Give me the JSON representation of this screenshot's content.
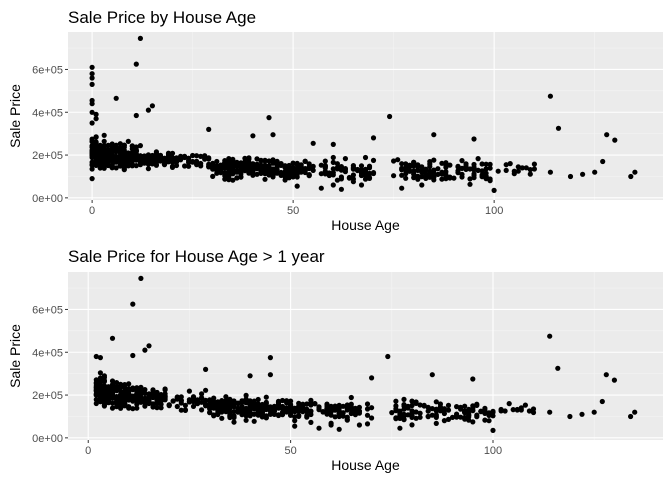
{
  "colors": {
    "panel_bg": "#ebebeb",
    "grid_major": "#ffffff",
    "grid_minor": "#f4f4f4",
    "point": "#000000",
    "tick_text": "#4d4d4d",
    "text": "#000000"
  },
  "chart_data": [
    {
      "type": "scatter",
      "title": "Sale Price by House Age",
      "xlabel": "House Age",
      "ylabel": "Sale Price",
      "xlim": [
        -6,
        142
      ],
      "ylim": [
        -10000,
        775000
      ],
      "x_ticks": [
        {
          "value": 0,
          "label": "0"
        },
        {
          "value": 50,
          "label": "50"
        },
        {
          "value": 100,
          "label": "100"
        }
      ],
      "y_ticks": [
        {
          "value": 0,
          "label": "0e+00"
        },
        {
          "value": 200000,
          "label": "2e+05"
        },
        {
          "value": 400000,
          "label": "4e+05"
        },
        {
          "value": 600000,
          "label": "6e+05"
        }
      ],
      "grid": true,
      "highlights": [
        [
          0,
          610000
        ],
        [
          0,
          580000
        ],
        [
          0,
          560000
        ],
        [
          0,
          530000
        ],
        [
          0,
          455000
        ],
        [
          0,
          440000
        ],
        [
          0,
          400000
        ],
        [
          1,
          390000
        ],
        [
          1,
          370000
        ],
        [
          0,
          350000
        ],
        [
          0,
          90000
        ],
        [
          12,
          745000
        ],
        [
          11,
          625000
        ],
        [
          6,
          465000
        ],
        [
          15,
          430000
        ],
        [
          14,
          410000
        ],
        [
          11,
          385000
        ],
        [
          44,
          375000
        ],
        [
          29,
          320000
        ],
        [
          45,
          295000
        ],
        [
          40,
          290000
        ],
        [
          55,
          255000
        ],
        [
          70,
          280000
        ],
        [
          74,
          380000
        ],
        [
          60,
          250000
        ],
        [
          85,
          295000
        ],
        [
          95,
          275000
        ],
        [
          114,
          475000
        ],
        [
          116,
          325000
        ],
        [
          128,
          295000
        ],
        [
          130,
          270000
        ],
        [
          134,
          100000
        ],
        [
          135,
          120000
        ],
        [
          125,
          120000
        ],
        [
          127,
          170000
        ],
        [
          122,
          110000
        ],
        [
          119,
          100000
        ],
        [
          114,
          120000
        ],
        [
          110,
          135000
        ],
        [
          107,
          140000
        ],
        [
          104,
          160000
        ],
        [
          103,
          155000
        ],
        [
          100,
          35000
        ],
        [
          99,
          80000
        ],
        [
          98,
          90000
        ],
        [
          60,
          60000
        ],
        [
          62,
          40000
        ],
        [
          51,
          55000
        ],
        [
          57,
          45000
        ],
        [
          67,
          60000
        ],
        [
          77,
          45000
        ],
        [
          82,
          60000
        ]
      ],
      "clusters": [
        {
          "x": [
            0,
            3
          ],
          "y": [
            100000,
            320000
          ],
          "n": 110
        },
        {
          "x": [
            3,
            12
          ],
          "y": [
            110000,
            280000
          ],
          "n": 150
        },
        {
          "x": [
            12,
            20
          ],
          "y": [
            130000,
            240000
          ],
          "n": 70
        },
        {
          "x": [
            20,
            30
          ],
          "y": [
            110000,
            230000
          ],
          "n": 40
        },
        {
          "x": [
            30,
            45
          ],
          "y": [
            70000,
            210000
          ],
          "n": 170
        },
        {
          "x": [
            45,
            55
          ],
          "y": [
            70000,
            190000
          ],
          "n": 80
        },
        {
          "x": [
            55,
            70
          ],
          "y": [
            60000,
            200000
          ],
          "n": 70
        },
        {
          "x": [
            75,
            100
          ],
          "y": [
            50000,
            200000
          ],
          "n": 110
        },
        {
          "x": [
            100,
            112
          ],
          "y": [
            90000,
            170000
          ],
          "n": 10
        }
      ]
    },
    {
      "type": "scatter",
      "title": "Sale Price for House Age > 1 year",
      "xlabel": "House Age",
      "ylabel": "Sale Price",
      "xlim": [
        -5,
        142
      ],
      "ylim": [
        -10000,
        775000
      ],
      "x_ticks": [
        {
          "value": 0,
          "label": "0"
        },
        {
          "value": 50,
          "label": "50"
        },
        {
          "value": 100,
          "label": "100"
        }
      ],
      "y_ticks": [
        {
          "value": 0,
          "label": "0e+00"
        },
        {
          "value": 200000,
          "label": "2e+05"
        },
        {
          "value": 400000,
          "label": "4e+05"
        },
        {
          "value": 600000,
          "label": "6e+05"
        }
      ],
      "grid": true,
      "highlights": [
        [
          13,
          745000
        ],
        [
          11,
          625000
        ],
        [
          6,
          465000
        ],
        [
          15,
          430000
        ],
        [
          14,
          410000
        ],
        [
          11,
          385000
        ],
        [
          2,
          380000
        ],
        [
          3,
          375000
        ],
        [
          45,
          375000
        ],
        [
          29,
          320000
        ],
        [
          45,
          295000
        ],
        [
          40,
          290000
        ],
        [
          70,
          280000
        ],
        [
          74,
          380000
        ],
        [
          85,
          295000
        ],
        [
          95,
          275000
        ],
        [
          114,
          475000
        ],
        [
          116,
          325000
        ],
        [
          128,
          295000
        ],
        [
          130,
          270000
        ],
        [
          134,
          100000
        ],
        [
          135,
          120000
        ],
        [
          125,
          120000
        ],
        [
          127,
          170000
        ],
        [
          122,
          110000
        ],
        [
          119,
          100000
        ],
        [
          114,
          120000
        ],
        [
          110,
          135000
        ],
        [
          107,
          140000
        ],
        [
          104,
          160000
        ],
        [
          100,
          35000
        ],
        [
          99,
          80000
        ],
        [
          60,
          60000
        ],
        [
          62,
          40000
        ],
        [
          51,
          55000
        ],
        [
          57,
          45000
        ],
        [
          67,
          60000
        ],
        [
          77,
          45000
        ]
      ],
      "clusters": [
        {
          "x": [
            2,
            4
          ],
          "y": [
            120000,
            320000
          ],
          "n": 60
        },
        {
          "x": [
            4,
            12
          ],
          "y": [
            110000,
            280000
          ],
          "n": 150
        },
        {
          "x": [
            12,
            20
          ],
          "y": [
            130000,
            240000
          ],
          "n": 70
        },
        {
          "x": [
            20,
            30
          ],
          "y": [
            110000,
            230000
          ],
          "n": 40
        },
        {
          "x": [
            30,
            45
          ],
          "y": [
            70000,
            210000
          ],
          "n": 170
        },
        {
          "x": [
            45,
            55
          ],
          "y": [
            70000,
            190000
          ],
          "n": 80
        },
        {
          "x": [
            55,
            70
          ],
          "y": [
            60000,
            200000
          ],
          "n": 70
        },
        {
          "x": [
            75,
            100
          ],
          "y": [
            50000,
            200000
          ],
          "n": 110
        },
        {
          "x": [
            100,
            112
          ],
          "y": [
            90000,
            170000
          ],
          "n": 10
        }
      ]
    }
  ]
}
